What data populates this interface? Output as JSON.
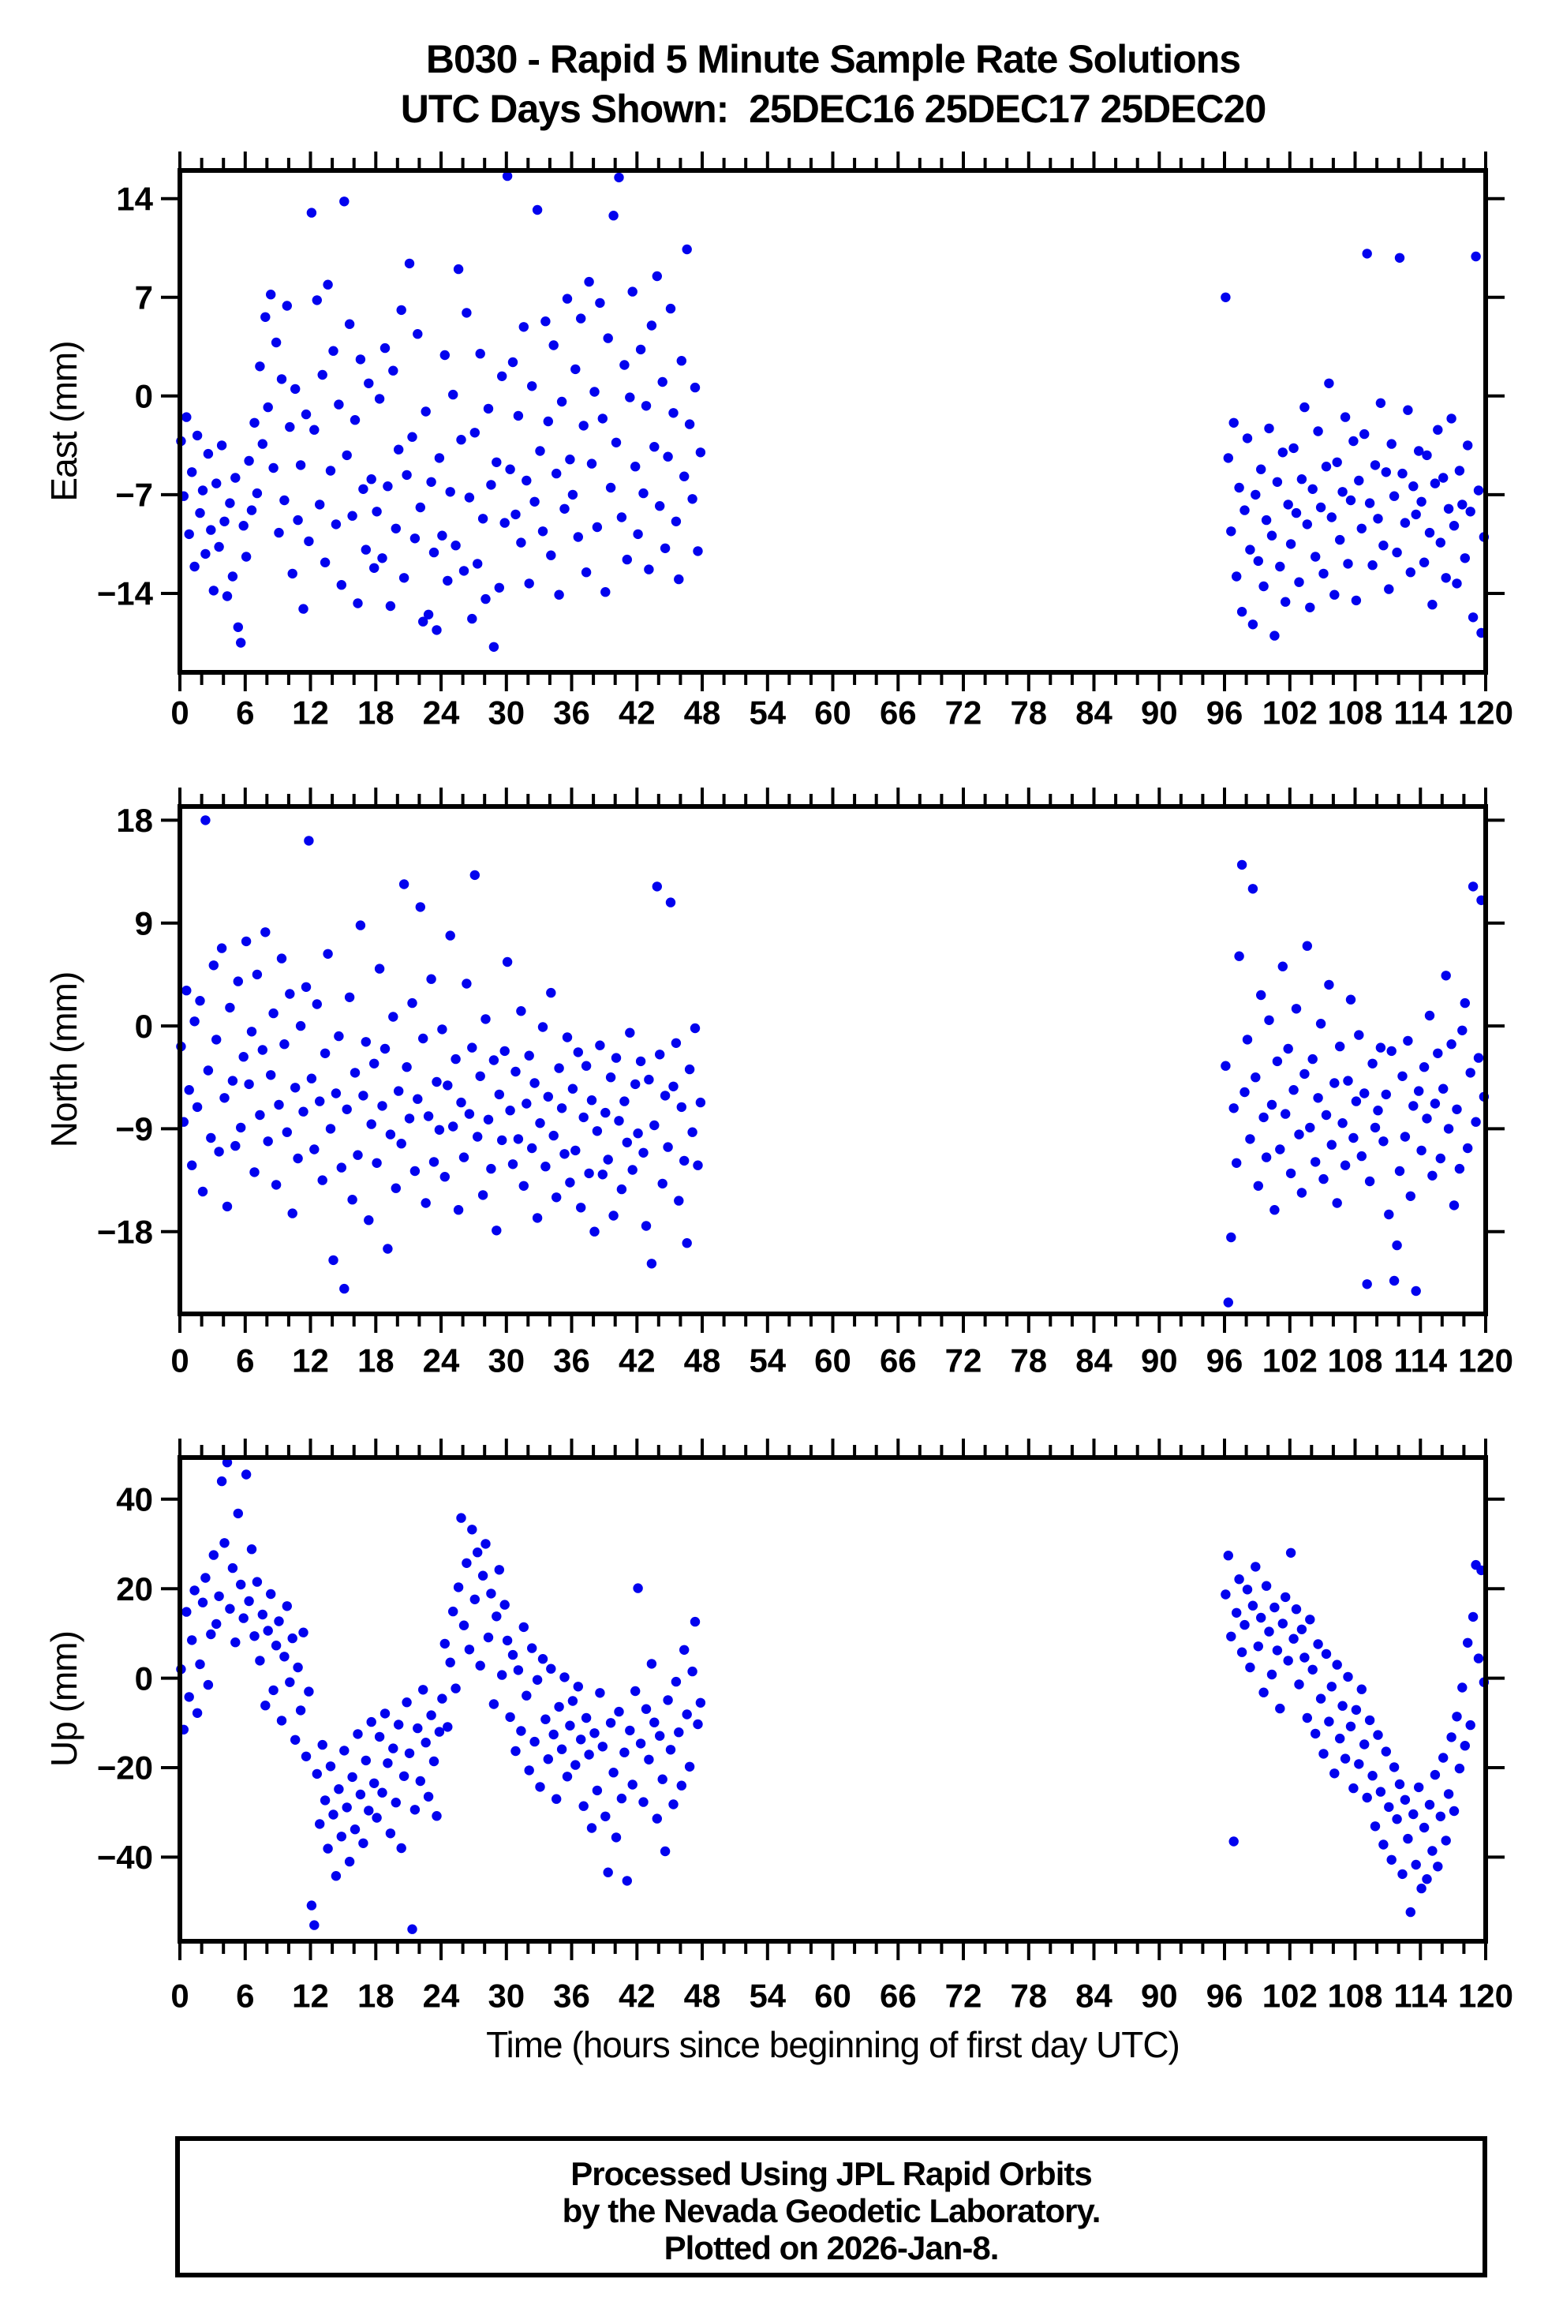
{
  "title": {
    "line1": "B030 - Rapid 5 Minute Sample Rate Solutions",
    "line2": "UTC Days Shown:  25DEC16 25DEC17 25DEC20"
  },
  "xlabel": "Time (hours since beginning of first day UTC)",
  "footer": {
    "lines": [
      "Processed Using JPL Rapid Orbits",
      "by the Nevada Geodetic Laboratory.",
      "Plotted on 2026-Jan-8."
    ]
  },
  "point_color": "#0202ee",
  "frame_color": "#000000",
  "x_axis": {
    "min": 0,
    "max": 120,
    "major_step": 6,
    "minor_step": 2,
    "labels": [
      0,
      6,
      12,
      18,
      24,
      30,
      36,
      42,
      48,
      54,
      60,
      66,
      72,
      78,
      84,
      90,
      96,
      102,
      108,
      114,
      120
    ]
  },
  "chart_data": [
    {
      "type": "scatter",
      "name": "East",
      "ylabel": "East (mm)",
      "ylim": [
        -19.6,
        16.0
      ],
      "yticks": [
        14,
        7,
        0,
        -7,
        -14
      ],
      "grid": false,
      "legend": "none",
      "series": [
        {
          "name": "days 25DEC16-25DEC17",
          "x0": 0.1,
          "dx": 0.25,
          "y": [
            -3.2,
            -7.1,
            -1.5,
            -9.8,
            -5.4,
            -12.1,
            -2.8,
            -8.3,
            -6.7,
            -11.2,
            -4.1,
            -9.5,
            -13.8,
            -6.2,
            -10.7,
            -3.5,
            -8.9,
            -14.2,
            -7.6,
            -12.8,
            -5.8,
            -16.4,
            -17.5,
            -9.2,
            -11.4,
            -4.6,
            -8.1,
            -1.9,
            -6.9,
            2.1,
            -3.4,
            5.6,
            -0.8,
            7.2,
            -5.1,
            3.8,
            -9.7,
            1.2,
            -7.4,
            6.4,
            -2.2,
            -12.6,
            0.5,
            -8.8,
            -4.9,
            -15.1,
            -1.3,
            -10.3,
            13.0,
            -2.4,
            6.8,
            -7.7,
            1.5,
            -11.8,
            7.9,
            -5.3,
            3.2,
            -9.1,
            -0.6,
            -13.4,
            13.8,
            -4.2,
            5.1,
            -8.5,
            -1.7,
            -14.7,
            2.6,
            -6.6,
            -10.9,
            0.9,
            -5.9,
            -12.2,
            -8.2,
            -0.2,
            -11.5,
            3.4,
            -6.4,
            -14.9,
            1.8,
            -9.4,
            -3.8,
            6.1,
            -12.9,
            -5.6,
            9.4,
            -2.9,
            -10.1,
            4.4,
            -7.9,
            -16.0,
            -1.1,
            -15.5,
            -6.1,
            -11.1,
            -16.6,
            -4.4,
            -9.9,
            2.9,
            -13.1,
            -6.8,
            0.1,
            -10.6,
            9.0,
            -3.1,
            -12.4,
            5.9,
            -7.2,
            -15.8,
            -2.6,
            -11.9,
            3.0,
            -8.7,
            -14.4,
            -0.9,
            -6.3,
            -17.8,
            -4.7,
            -13.6,
            1.4,
            -9.0,
            15.6,
            -5.2,
            2.4,
            -8.4,
            -1.4,
            -10.4,
            4.9,
            -6.0,
            -13.3,
            0.7,
            -7.5,
            13.2,
            -3.9,
            -9.6,
            5.3,
            -1.8,
            -11.3,
            3.6,
            -5.5,
            -14.1,
            -0.4,
            -8.0,
            6.9,
            -4.5,
            -7.0,
            1.9,
            -10.0,
            5.5,
            -2.1,
            -12.5,
            8.1,
            -4.8,
            0.3,
            -9.3,
            6.6,
            -1.6,
            -13.9,
            4.1,
            -6.5,
            12.8,
            -3.3,
            15.5,
            -8.6,
            2.2,
            -11.6,
            -0.1,
            7.4,
            -5.0,
            -9.8,
            3.3,
            -6.9,
            -0.7,
            -12.3,
            5.0,
            -3.6,
            8.5,
            -7.8,
            1.0,
            -10.8,
            -4.3,
            6.2,
            -1.2,
            -8.9,
            -13.0,
            2.5,
            -5.7,
            10.4,
            -2.0,
            -7.3,
            0.6,
            -11.0,
            -4.0
          ]
        },
        {
          "name": "day 25DEC20",
          "x0": 96.1,
          "dx": 0.25,
          "y": [
            7.0,
            -4.4,
            -9.6,
            -1.9,
            -12.8,
            -6.5,
            -15.3,
            -8.1,
            -3.0,
            -10.9,
            -16.2,
            -7.0,
            -11.7,
            -5.2,
            -13.5,
            -8.8,
            -2.3,
            -9.9,
            -17.0,
            -6.1,
            -12.1,
            -4.0,
            -14.6,
            -7.7,
            -10.5,
            -3.7,
            -8.3,
            -13.2,
            -5.9,
            -0.8,
            -9.1,
            -15.0,
            -6.6,
            -11.4,
            -2.5,
            -7.9,
            -12.6,
            -5.0,
            0.9,
            -8.6,
            -14.1,
            -4.7,
            -10.2,
            -6.8,
            -1.5,
            -11.9,
            -7.4,
            -3.2,
            -14.5,
            -6.0,
            -9.4,
            -2.7,
            10.1,
            -7.6,
            -12.0,
            -4.9,
            -8.7,
            -0.5,
            -10.6,
            -5.4,
            -13.7,
            -3.4,
            -7.1,
            -11.1,
            9.8,
            -5.5,
            -9.0,
            -1.0,
            -12.5,
            -6.4,
            -8.4,
            -3.9,
            -7.5,
            -11.8,
            -4.2,
            -9.7,
            -14.8,
            -6.2,
            -2.4,
            -10.4,
            -5.8,
            -12.9,
            -8.0,
            -1.6,
            -9.2,
            -13.3,
            -5.3,
            -7.7,
            -11.5,
            -3.5,
            -8.2,
            -15.7,
            9.9,
            -6.7,
            -16.8,
            -10.0
          ]
        }
      ]
    },
    {
      "type": "scatter",
      "name": "North",
      "ylabel": "North (mm)",
      "ylim": [
        -25.2,
        19.2
      ],
      "yticks": [
        18,
        9,
        0,
        -9,
        -18
      ],
      "grid": false,
      "legend": "none",
      "series": [
        {
          "name": "days 25DEC16-25DEC17",
          "x0": 0.1,
          "dx": 0.25,
          "y": [
            -1.8,
            -8.4,
            3.1,
            -5.6,
            -12.2,
            0.4,
            -7.1,
            2.2,
            -14.5,
            18.0,
            -3.9,
            -9.8,
            5.3,
            -1.2,
            -11.0,
            6.8,
            -6.3,
            -15.8,
            1.6,
            -4.8,
            -10.5,
            3.9,
            -8.9,
            -2.7,
            7.4,
            -5.1,
            -0.5,
            -12.8,
            4.5,
            -7.8,
            -2.1,
            8.2,
            -10.1,
            -4.3,
            1.1,
            -13.9,
            -6.9,
            5.9,
            -1.6,
            -9.3,
            2.8,
            -16.4,
            -5.4,
            -11.6,
            0.0,
            -7.5,
            3.4,
            16.2,
            -4.6,
            -10.8,
            1.9,
            -6.6,
            -13.5,
            -2.4,
            6.3,
            -9.0,
            -20.5,
            -5.9,
            -0.9,
            -12.4,
            -23.0,
            -7.3,
            2.5,
            -15.2,
            -4.1,
            -11.3,
            8.8,
            -6.1,
            -1.4,
            -17.0,
            -8.6,
            -3.3,
            -12.0,
            5.0,
            -7.0,
            -2.0,
            -19.5,
            -9.5,
            0.8,
            -14.2,
            -5.7,
            -10.3,
            12.4,
            -3.6,
            -8.1,
            2.0,
            -12.7,
            -6.4,
            10.4,
            -1.1,
            -15.5,
            -7.9,
            4.1,
            -11.9,
            -4.9,
            -9.1,
            -0.3,
            -13.2,
            -5.2,
            7.9,
            -8.8,
            -2.9,
            -16.1,
            -6.7,
            -11.5,
            3.7,
            -7.7,
            -1.9,
            13.2,
            -9.7,
            -4.4,
            -14.8,
            0.6,
            -8.2,
            -12.5,
            -3.0,
            -17.9,
            -6.0,
            -10.0,
            -2.2,
            5.6,
            -7.4,
            -12.1,
            -4.0,
            -9.9,
            1.3,
            -14.0,
            -6.8,
            -2.6,
            -10.7,
            -5.0,
            -16.8,
            -8.5,
            -0.1,
            -12.3,
            -6.2,
            2.9,
            -9.6,
            -15.0,
            -3.7,
            -7.2,
            -11.2,
            -1.0,
            -13.7,
            -5.5,
            -10.9,
            -2.3,
            -15.9,
            -8.0,
            -3.5,
            -12.9,
            -6.5,
            -18.0,
            -9.2,
            -1.7,
            -13.0,
            -7.6,
            -11.7,
            -4.5,
            -16.6,
            -2.8,
            -8.3,
            -14.3,
            -6.6,
            -10.2,
            -0.6,
            -12.6,
            -5.1,
            -9.4,
            -3.1,
            -11.1,
            -17.5,
            -4.7,
            -20.8,
            -8.7,
            12.2,
            -2.5,
            -13.8,
            -6.1,
            -10.6,
            10.8,
            -5.3,
            -1.5,
            -15.3,
            -7.1,
            -11.8,
            -19.0,
            -3.8,
            -9.3,
            -0.2,
            -12.2,
            -6.7
          ]
        },
        {
          "name": "day 25DEC20",
          "x0": 96.1,
          "dx": 0.25,
          "y": [
            -3.5,
            -24.2,
            -18.5,
            -7.2,
            -12.0,
            6.1,
            14.1,
            -5.8,
            -1.2,
            -9.9,
            12.0,
            -4.5,
            -14.0,
            2.7,
            -8.0,
            -11.5,
            0.5,
            -6.9,
            -16.1,
            -3.1,
            -10.8,
            5.2,
            -7.7,
            -2.0,
            -12.9,
            -5.6,
            1.5,
            -9.5,
            -14.6,
            -4.2,
            7.0,
            -8.9,
            -2.9,
            -11.9,
            -6.3,
            0.2,
            -13.4,
            -7.8,
            3.6,
            -10.4,
            -5.0,
            -15.5,
            -1.8,
            -8.5,
            -12.2,
            -4.8,
            2.3,
            -9.8,
            -6.6,
            -0.8,
            -11.4,
            -5.9,
            -22.6,
            -13.6,
            -3.3,
            -8.9,
            -7.4,
            -1.9,
            -10.1,
            -6.0,
            -16.5,
            -2.2,
            -22.3,
            -19.2,
            -12.7,
            -4.4,
            -9.7,
            -1.3,
            -14.9,
            -7.0,
            -23.2,
            -5.7,
            -10.9,
            -3.6,
            -8.1,
            0.9,
            -13.1,
            -6.8,
            -2.4,
            -11.6,
            -5.5,
            4.4,
            -9.0,
            -1.6,
            -15.7,
            -7.3,
            -12.5,
            -0.4,
            2.0,
            -10.7,
            -4.1,
            12.2,
            -8.4,
            -2.8,
            11.0,
            -6.2
          ]
        }
      ]
    },
    {
      "type": "scatter",
      "name": "Up",
      "ylabel": "Up (mm)",
      "ylim": [
        -58.8,
        49.3
      ],
      "yticks": [
        40,
        20,
        0,
        -20,
        -40
      ],
      "grid": false,
      "legend": "none",
      "series": [
        {
          "name": "days 25DEC16-25DEC17",
          "x0": 0.1,
          "dx": 0.25,
          "y": [
            2.0,
            -11.5,
            14.8,
            -4.2,
            8.5,
            19.6,
            -7.8,
            3.1,
            16.9,
            22.4,
            -1.5,
            9.8,
            27.5,
            12.1,
            18.3,
            44.0,
            30.2,
            48.2,
            15.5,
            24.6,
            8.0,
            36.8,
            20.9,
            13.4,
            45.5,
            17.2,
            28.8,
            9.4,
            21.5,
            3.9,
            14.2,
            -6.1,
            10.6,
            18.8,
            -2.7,
            7.3,
            12.7,
            -9.5,
            4.8,
            16.1,
            -0.9,
            8.9,
            -13.8,
            2.4,
            -7.2,
            10.2,
            -17.5,
            -3.0,
            -50.8,
            -55.2,
            -21.4,
            -32.6,
            -14.9,
            -27.3,
            -38.1,
            -19.7,
            -30.5,
            -44.2,
            -24.8,
            -35.4,
            -16.2,
            -28.9,
            -41.0,
            -22.1,
            -33.8,
            -12.5,
            -26.0,
            -36.9,
            -18.4,
            -29.6,
            -9.8,
            -23.5,
            -31.2,
            -13.1,
            -25.6,
            -7.9,
            -19.0,
            -34.7,
            -15.7,
            -27.8,
            -10.4,
            -38.0,
            -21.9,
            -5.4,
            -16.8,
            -56.1,
            -29.4,
            -11.2,
            -23.0,
            -2.6,
            -14.4,
            -26.5,
            -8.3,
            -18.6,
            -30.8,
            -12.0,
            -4.6,
            7.7,
            -10.9,
            3.5,
            14.9,
            -2.3,
            20.3,
            35.8,
            11.8,
            25.7,
            6.4,
            33.2,
            17.6,
            28.1,
            2.8,
            22.9,
            30.0,
            9.1,
            18.9,
            -5.8,
            13.8,
            24.2,
            0.7,
            16.4,
            8.4,
            -8.7,
            5.2,
            -16.3,
            1.8,
            -11.8,
            11.4,
            -3.9,
            -20.6,
            6.7,
            -14.2,
            -0.4,
            -24.3,
            4.3,
            -9.2,
            -18.1,
            2.1,
            -12.6,
            -27.0,
            -6.4,
            -15.9,
            0.2,
            -22.0,
            -10.6,
            -5.1,
            -19.4,
            -1.9,
            -13.7,
            -28.6,
            -8.9,
            -17.1,
            -33.5,
            -12.3,
            -25.1,
            -3.3,
            -15.3,
            -30.9,
            -43.4,
            -10.0,
            -21.1,
            -35.6,
            -7.5,
            -26.9,
            -16.6,
            -45.3,
            -11.7,
            -23.8,
            -2.9,
            20.1,
            -14.6,
            -27.7,
            -6.9,
            -18.2,
            3.2,
            -9.9,
            -31.4,
            -12.9,
            -22.6,
            -38.7,
            -4.9,
            -16.0,
            -28.2,
            -0.8,
            -12.1,
            -24.0,
            6.3,
            -8.1,
            -19.8,
            1.5,
            12.6,
            -10.3,
            -5.5
          ]
        },
        {
          "name": "day 25DEC20",
          "x0": 96.1,
          "dx": 0.25,
          "y": [
            18.7,
            27.4,
            9.3,
            -36.5,
            14.6,
            22.1,
            5.8,
            11.9,
            19.8,
            2.4,
            16.2,
            24.9,
            7.1,
            13.5,
            -3.2,
            20.6,
            10.4,
            0.8,
            15.8,
            6.2,
            -6.8,
            12.2,
            18.1,
            3.9,
            28.0,
            8.8,
            15.4,
            -1.4,
            10.9,
            4.6,
            -8.9,
            13.1,
            1.9,
            -12.4,
            7.6,
            -4.6,
            -16.9,
            5.4,
            -9.7,
            -1.9,
            -21.3,
            3.0,
            -13.5,
            -6.2,
            -18.0,
            0.3,
            -10.8,
            -24.6,
            -7.1,
            -19.2,
            -2.5,
            -14.8,
            -26.7,
            -9.4,
            -21.8,
            -33.1,
            -12.7,
            -25.4,
            -37.2,
            -16.4,
            -28.8,
            -40.6,
            -19.9,
            -31.5,
            -23.7,
            -43.8,
            -27.2,
            -35.9,
            -52.3,
            -30.4,
            -41.7,
            -24.4,
            -47.0,
            -33.4,
            -44.9,
            -28.3,
            -38.6,
            -21.6,
            -42.1,
            -30.9,
            -17.8,
            -36.3,
            -25.9,
            -13.2,
            -29.7,
            -8.6,
            -20.2,
            -2.1,
            -15.1,
            7.9,
            -10.5,
            13.7,
            25.3,
            4.4,
            24.1,
            -0.9
          ]
        }
      ]
    }
  ]
}
